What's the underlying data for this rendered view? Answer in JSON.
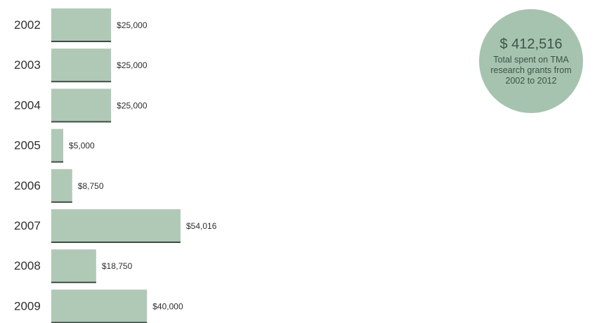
{
  "chart_data": {
    "type": "bar",
    "orientation": "horizontal",
    "categories": [
      "2002",
      "2003",
      "2004",
      "2005",
      "2006",
      "2007",
      "2008",
      "2009"
    ],
    "values": [
      25000,
      25000,
      25000,
      5000,
      8750,
      54016,
      18750,
      40000
    ],
    "value_labels": [
      "$25,000",
      "$25,000",
      "$25,000",
      "$5,000",
      "$8,750",
      "$54,016",
      "$18,750",
      "$40,000"
    ],
    "colors": {
      "bar": "#b0c9b6",
      "underline": "#3f4a44",
      "bubble": "#a5c3ae",
      "text": "#2f2f2f"
    },
    "grid": false
  },
  "summary": {
    "total": "$ 412,516",
    "caption": "Total spent on TMA research grants from 2002 to 2012"
  }
}
